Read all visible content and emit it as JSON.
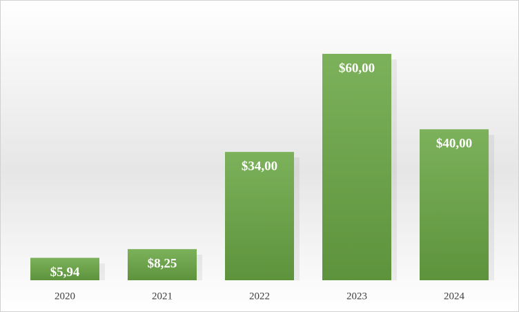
{
  "chart_data": {
    "type": "bar",
    "categories": [
      "2020",
      "2021",
      "2022",
      "2023",
      "2024"
    ],
    "values": [
      5.94,
      8.25,
      34,
      60,
      40
    ],
    "value_labels": [
      "$5,94",
      "$8,25",
      "$34,00",
      "$60,00",
      "$40,00"
    ],
    "color": "#6aa744"
  }
}
